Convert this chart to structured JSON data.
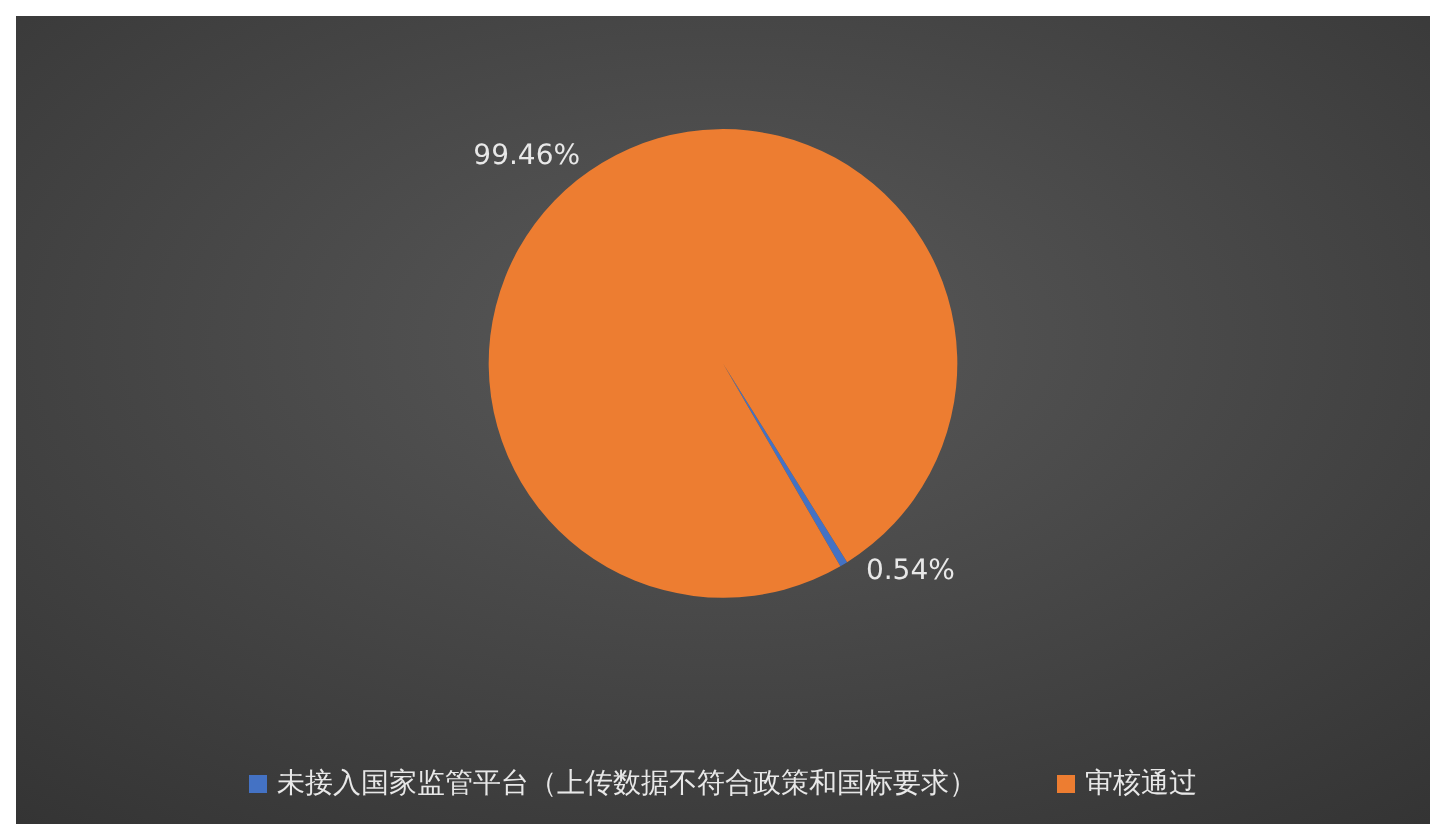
{
  "chart_data": {
    "type": "pie",
    "categories": [
      "未接入国家监管平台（上传数据不符合政策和国标要求）",
      "审核通过"
    ],
    "values": [
      0.54,
      99.46
    ],
    "colors": [
      "#4472c4",
      "#ed7d31"
    ],
    "value_labels": [
      "0.54%",
      "99.46%"
    ],
    "legend": "bottom"
  }
}
